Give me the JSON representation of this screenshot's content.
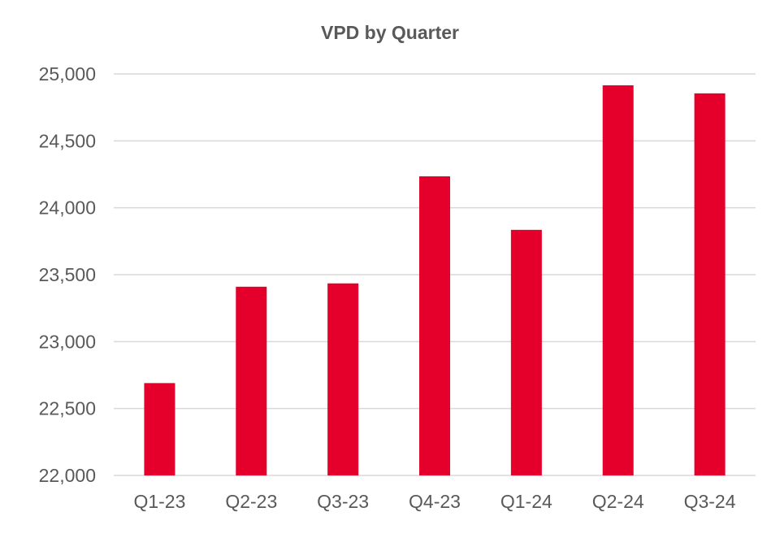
{
  "chart_data": {
    "type": "bar",
    "title": "VPD by Quarter",
    "xlabel": "",
    "ylabel": "",
    "categories": [
      "Q1-23",
      "Q2-23",
      "Q3-23",
      "Q4-23",
      "Q1-24",
      "Q2-24",
      "Q3-24"
    ],
    "values": [
      22690,
      23410,
      23435,
      24235,
      23835,
      24915,
      24855
    ],
    "ylim": [
      22000,
      25000
    ],
    "yticks": [
      22000,
      22500,
      23000,
      23500,
      24000,
      24500,
      25000
    ],
    "ytick_labels": [
      "22,000",
      "22,500",
      "23,000",
      "23,500",
      "24,000",
      "24,500",
      "25,000"
    ],
    "grid": true,
    "legend": "none",
    "colors": {
      "bar": "#E4002B",
      "grid": "#D9D9D9",
      "text": "#595959"
    }
  }
}
